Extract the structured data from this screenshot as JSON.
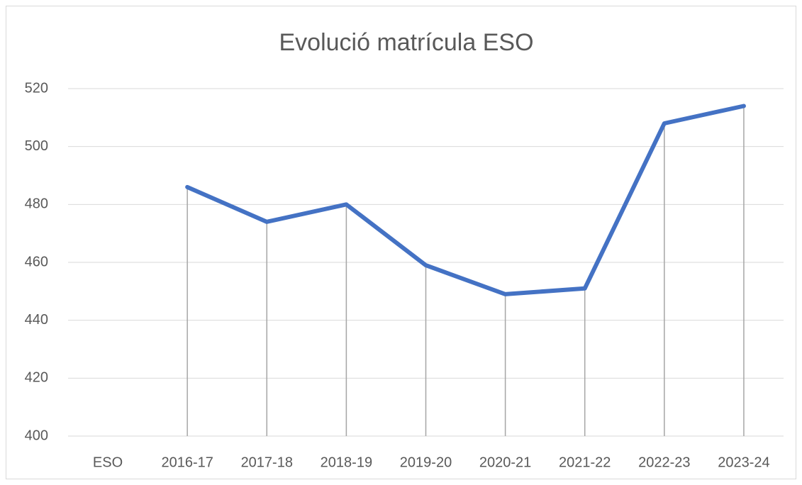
{
  "chart_data": {
    "type": "line",
    "title": "Evolució matrícula ESO",
    "categories": [
      "ESO",
      "2016-17",
      "2017-18",
      "2018-19",
      "2019-20",
      "2020-21",
      "2021-22",
      "2022-23",
      "2023-24"
    ],
    "series": [
      {
        "name": "ESO",
        "color": "#4472c4",
        "values": [
          null,
          486,
          474,
          480,
          459,
          449,
          451,
          508,
          514
        ]
      }
    ],
    "ylim": [
      400,
      520
    ],
    "yticks": [
      400,
      420,
      440,
      460,
      480,
      500,
      520
    ],
    "grid": true,
    "drop_lines": true
  }
}
